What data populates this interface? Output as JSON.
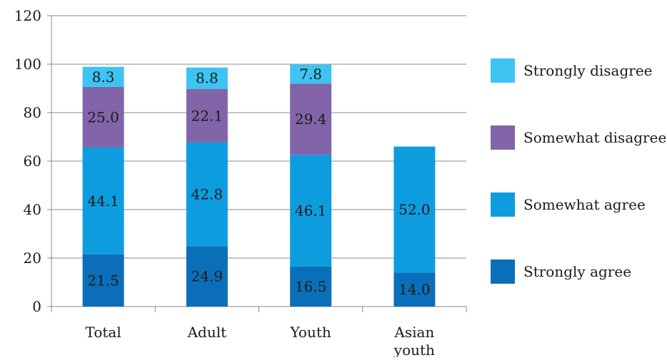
{
  "chart_data": {
    "type": "bar",
    "stacked": true,
    "title": "",
    "xlabel": "",
    "ylabel": "",
    "ylim": [
      0,
      120
    ],
    "yticks": [
      0,
      20,
      40,
      60,
      80,
      100,
      120
    ],
    "grid": true,
    "legend_position": "right",
    "categories": [
      "Total",
      "Adult",
      "Youth",
      "Asian youth"
    ],
    "series": [
      {
        "name": "Strongly agree",
        "color": "#0a6fb8",
        "values": [
          21.5,
          24.9,
          16.5,
          14.0
        ]
      },
      {
        "name": "Somewhat agree",
        "color": "#0d9ddf",
        "values": [
          44.1,
          42.8,
          46.1,
          52.0
        ]
      },
      {
        "name": "Somewhat disagree",
        "color": "#8165a8",
        "values": [
          25.0,
          22.1,
          29.4,
          null
        ]
      },
      {
        "name": "Strongly disagree",
        "color": "#3ec4f2",
        "values": [
          8.3,
          8.8,
          7.8,
          null
        ]
      }
    ]
  }
}
